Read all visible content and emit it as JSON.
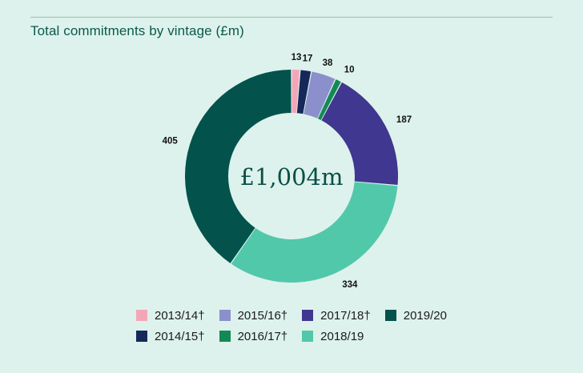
{
  "title": "Total commitments by vintage (£m)",
  "chart_data": {
    "type": "pie",
    "donut": true,
    "center_label": "£1,004m",
    "slices": [
      {
        "label": "2013/14†",
        "value": 13,
        "value_label": "13",
        "color": "#f4a6b8"
      },
      {
        "label": "2014/15†",
        "value": 17,
        "value_label": "17",
        "color": "#16285a"
      },
      {
        "label": "2015/16†",
        "value": 38,
        "value_label": "38",
        "color": "#8b90cc"
      },
      {
        "label": "2016/17†",
        "value": 10,
        "value_label": "10",
        "color": "#138a55"
      },
      {
        "label": "2017/18†",
        "value": 187,
        "value_label": "187",
        "color": "#3f3790"
      },
      {
        "label": "2018/19",
        "value": 334,
        "value_label": "334",
        "color": "#52c8aa"
      },
      {
        "label": "2019/20",
        "value": 405,
        "value_label": "405",
        "color": "#03524c"
      }
    ],
    "legend_order": [
      "2013/14†",
      "2015/16†",
      "2017/18†",
      "2019/20",
      "2014/15†",
      "2016/17†",
      "2018/19"
    ],
    "legend_placement": "bottom"
  }
}
